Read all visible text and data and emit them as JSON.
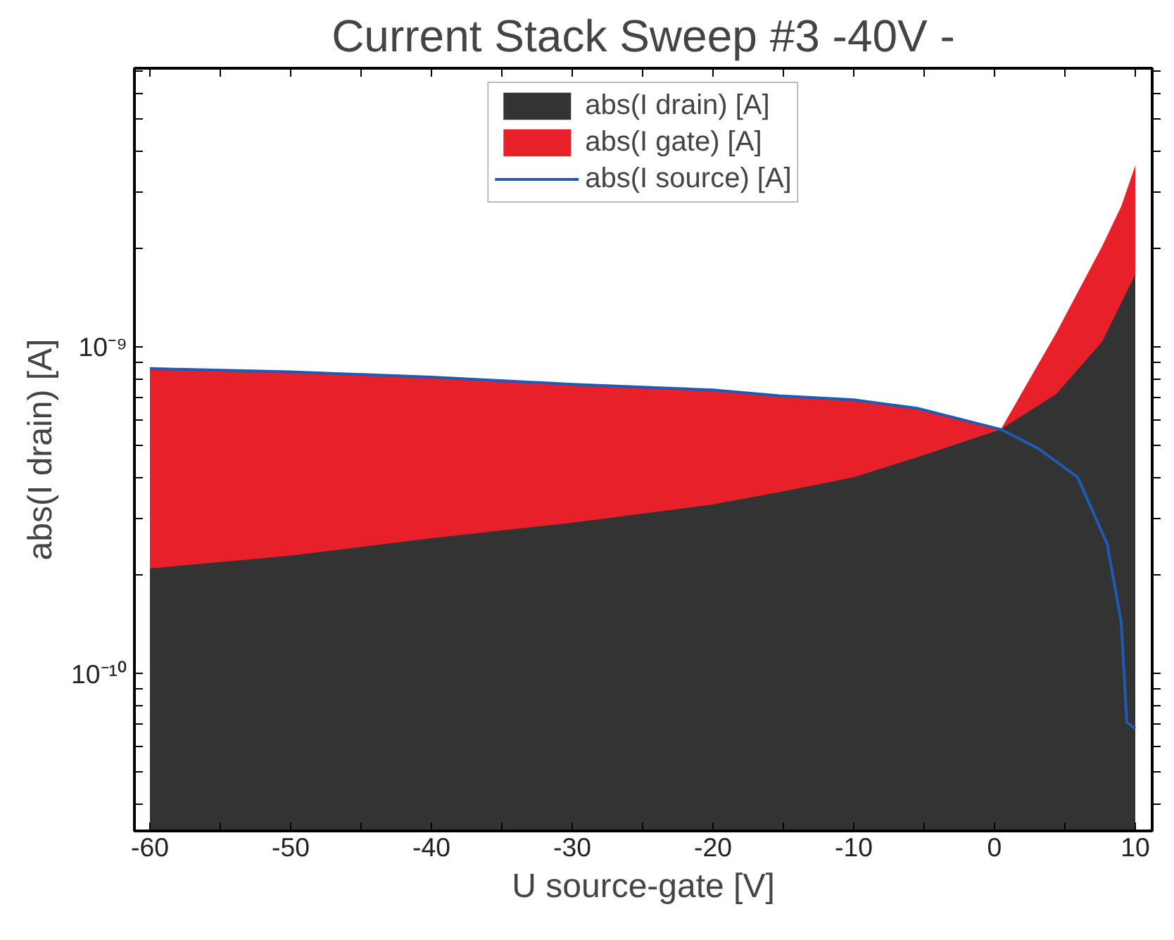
{
  "chart_data": {
    "type": "area",
    "title": "Current Stack Sweep #3 -40V -",
    "xlabel": "U source-gate [V]",
    "ylabel": "abs(I drain) [A]",
    "log": "y",
    "grid": false,
    "legend": "top",
    "xlim": [
      -61.1,
      11.2
    ],
    "xticks": [
      -60,
      {
        "value": -55,
        "label": null
      },
      -50,
      {
        "value": -45,
        "label": null
      },
      -40,
      {
        "value": -35,
        "label": null
      },
      -30,
      {
        "value": -25,
        "label": null
      },
      -20,
      {
        "value": -15,
        "label": null
      },
      -10,
      {
        "value": -5,
        "label": null
      },
      0,
      {
        "value": 5,
        "label": null
      },
      10
    ],
    "ylim": [
      3.3e-11,
      7.15e-09
    ],
    "yticks": [
      {
        "value": 4e-11,
        "label": null
      },
      {
        "value": 5e-11,
        "label": null
      },
      {
        "value": 6e-11,
        "label": null
      },
      {
        "value": 7e-11,
        "label": null
      },
      {
        "value": 8e-11,
        "label": null
      },
      {
        "value": 9e-11,
        "label": null
      },
      {
        "value": 1e-10,
        "label": "10⁻¹⁰"
      },
      {
        "value": 2e-10,
        "label": null
      },
      {
        "value": 3e-10,
        "label": null
      },
      {
        "value": 4e-10,
        "label": null
      },
      {
        "value": 5e-10,
        "label": null
      },
      {
        "value": 6e-10,
        "label": null
      },
      {
        "value": 7e-10,
        "label": null
      },
      {
        "value": 8e-10,
        "label": null
      },
      {
        "value": 9e-10,
        "label": null
      },
      {
        "value": 1e-09,
        "label": "10⁻⁹"
      },
      {
        "value": 2e-09,
        "label": null
      },
      {
        "value": 3e-09,
        "label": null
      },
      {
        "value": 4e-09,
        "label": null
      },
      {
        "value": 5e-09,
        "label": null
      },
      {
        "value": 6e-09,
        "label": null
      },
      {
        "value": 7e-09,
        "label": null
      }
    ],
    "series": [
      {
        "name": "abs(I gate) [A]",
        "color": "#e8202a",
        "x": [
          -60,
          -50,
          -40,
          -30,
          -20,
          -15.3,
          -10,
          -5.5,
          0.45,
          4.4,
          7.65,
          9.0,
          10
        ],
        "values": [
          8.6e-10,
          8.4e-10,
          8.1e-10,
          7.7e-10,
          7.4e-10,
          7.1e-10,
          6.9e-10,
          6.5e-10,
          5.6e-10,
          1.11e-09,
          2.04e-09,
          2.7e-09,
          3.6e-09
        ]
      },
      {
        "name": "abs(I drain) [A]",
        "color": "#333333",
        "x": [
          -60,
          -50,
          -40,
          -30,
          -20,
          -15.3,
          -10,
          -5.5,
          0.45,
          4.4,
          7.65,
          10
        ],
        "values": [
          2.1e-10,
          2.3e-10,
          2.6e-10,
          2.9e-10,
          3.3e-10,
          3.6e-10,
          4e-10,
          4.6e-10,
          5.6e-10,
          7.2e-10,
          1.04e-09,
          1.67e-09
        ]
      },
      {
        "name": "abs(I source) [A]",
        "type": "line",
        "color": "#1f5bb5",
        "x": [
          -60,
          -50,
          -40,
          -30,
          -20,
          -15.3,
          -10,
          -5.5,
          0.45,
          3.1,
          5.9,
          8.0,
          9.0,
          9.4,
          10
        ],
        "values": [
          8.6e-10,
          8.4e-10,
          8.1e-10,
          7.7e-10,
          7.4e-10,
          7.1e-10,
          6.9e-10,
          6.5e-10,
          5.6e-10,
          4.9e-10,
          4e-10,
          2.5e-10,
          1.44e-10,
          7.1e-11,
          6.8e-11
        ]
      }
    ]
  }
}
